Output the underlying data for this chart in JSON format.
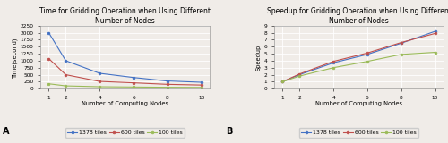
{
  "nodes": [
    1,
    2,
    4,
    6,
    8,
    10
  ],
  "time_1378": [
    2000,
    1000,
    550,
    400,
    275,
    230
  ],
  "time_600": [
    1075,
    500,
    260,
    210,
    155,
    130
  ],
  "time_100": [
    175,
    100,
    70,
    60,
    50,
    45
  ],
  "speedup_1378": [
    1.0,
    2.0,
    3.7,
    4.9,
    6.5,
    8.2
  ],
  "speedup_600": [
    1.0,
    2.1,
    3.9,
    5.1,
    6.6,
    7.9
  ],
  "speedup_100": [
    1.0,
    1.8,
    3.0,
    3.9,
    4.9,
    5.2
  ],
  "color_1378": "#4472c4",
  "color_600": "#c0504d",
  "color_100": "#9bbb59",
  "title_a": "Time for Gridding Operation when Using Different\nNumber of Nodes",
  "title_b": "Speedup for Gridding Operation when Using Different\nNumber of Nodes",
  "xlabel": "Number of Computing Nodes",
  "ylabel_a": "Time(second)",
  "ylabel_b": "Speedup",
  "ylim_a": [
    0,
    2250
  ],
  "ylim_b": [
    0,
    9
  ],
  "yticks_a": [
    0,
    250,
    500,
    750,
    1000,
    1250,
    1500,
    1750,
    2000,
    2250
  ],
  "yticks_b": [
    0,
    1,
    2,
    3,
    4,
    5,
    6,
    7,
    8,
    9
  ],
  "label_1378": "1378 tiles",
  "label_600": "600 tiles",
  "label_100": "100 tiles",
  "label_a": "A",
  "label_b": "B",
  "fig_bg": "#f0ece8",
  "axes_bg": "#f0ece8",
  "grid_color": "#ffffff",
  "title_fontsize": 5.5,
  "axis_label_fontsize": 4.8,
  "tick_fontsize": 4.2,
  "legend_fontsize": 4.5,
  "ab_label_fontsize": 7.0
}
